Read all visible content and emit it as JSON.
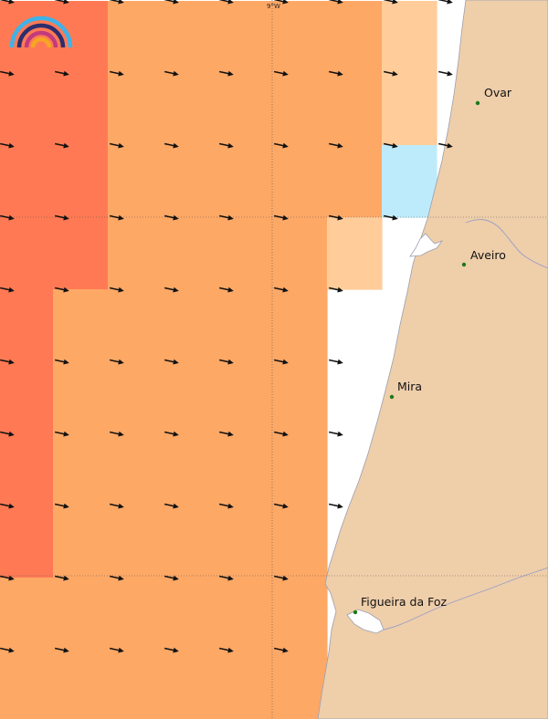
{
  "map": {
    "meridian_label": "9°W",
    "colors": {
      "sea": "#ffffff",
      "land": "#efceaa",
      "coast": "#9aa0b0",
      "river": "#9aa0c4",
      "grid": "#555555",
      "arrow": "#111111",
      "city_dot": "#1a7a1a",
      "palette": {
        "red": "#ff7a54",
        "orange": "#fea866",
        "light": "#ffcc9a",
        "cyan": "#bdebfb"
      }
    },
    "cells": [
      [
        "red",
        "red",
        "orange",
        "orange",
        "orange",
        "orange",
        "orange",
        "light",
        null
      ],
      [
        "red",
        "red",
        "orange",
        "orange",
        "orange",
        "orange",
        "orange",
        "light",
        null
      ],
      [
        "red",
        "red",
        "orange",
        "orange",
        "orange",
        "orange",
        "orange",
        "cyan",
        null
      ],
      [
        "red",
        "red",
        "orange",
        "orange",
        "orange",
        "orange",
        "light",
        null,
        null
      ],
      [
        "red",
        "orange",
        "orange",
        "orange",
        "orange",
        "orange",
        null,
        null,
        null
      ],
      [
        "red",
        "orange",
        "orange",
        "orange",
        "orange",
        "orange",
        null,
        null,
        null
      ],
      [
        "red",
        "orange",
        "orange",
        "orange",
        "orange",
        "orange",
        null,
        null,
        null
      ],
      [
        "red",
        "orange",
        "orange",
        "orange",
        "orange",
        "orange",
        null,
        null,
        null
      ],
      [
        "orange",
        "orange",
        "orange",
        "orange",
        "orange",
        "orange",
        null,
        null,
        null
      ],
      [
        "orange",
        "orange",
        "orange",
        "orange",
        "orange",
        "orange",
        null,
        null,
        null
      ]
    ],
    "arrows_per_row": [
      9,
      9,
      9,
      8,
      7,
      7,
      7,
      7,
      6,
      6
    ],
    "cities": [
      {
        "name": "Ovar",
        "label": "Ovar"
      },
      {
        "name": "Aveiro",
        "label": "Aveiro"
      },
      {
        "name": "Mira",
        "label": "Mira"
      },
      {
        "name": "Figueira da Foz",
        "label": "Figueira da Foz"
      }
    ]
  }
}
